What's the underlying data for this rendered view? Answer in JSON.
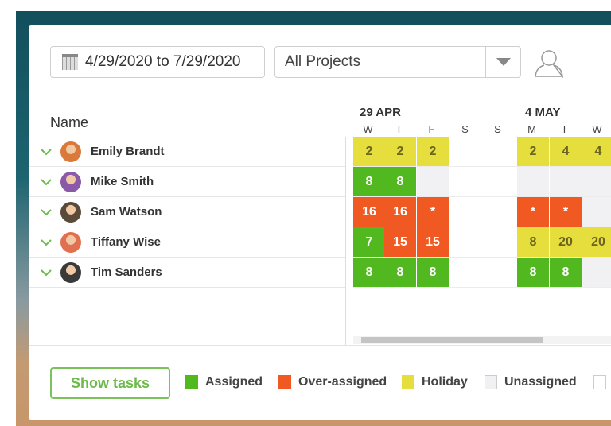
{
  "toolbar": {
    "date_range": "4/29/2020 to 7/29/2020",
    "project_filter": "All Projects"
  },
  "grid": {
    "name_header": "Name",
    "weeks": [
      {
        "label": "29 APR"
      },
      {
        "label": "4 MAY"
      }
    ],
    "days": [
      "W",
      "T",
      "F",
      "S",
      "S",
      "M",
      "T",
      "W"
    ],
    "people": [
      {
        "name": "Emily Brandt",
        "avatar_color": "#d9793a",
        "cells": [
          [
            "H",
            "2"
          ],
          [
            "H",
            "2"
          ],
          [
            "H",
            "2"
          ],
          [
            "W",
            ""
          ],
          [
            "W",
            ""
          ],
          [
            "H",
            "2"
          ],
          [
            "H",
            "4"
          ],
          [
            "H",
            "4"
          ]
        ]
      },
      {
        "name": "Mike Smith",
        "avatar_color": "#8a5aa8",
        "cells": [
          [
            "A",
            "8"
          ],
          [
            "A",
            "8"
          ],
          [
            "U",
            ""
          ],
          [
            "W",
            ""
          ],
          [
            "W",
            ""
          ],
          [
            "U",
            ""
          ],
          [
            "U",
            ""
          ],
          [
            "U",
            ""
          ]
        ]
      },
      {
        "name": "Sam Watson",
        "avatar_color": "#5a4a3a",
        "cells": [
          [
            "O",
            "16"
          ],
          [
            "O",
            "16"
          ],
          [
            "O",
            "*"
          ],
          [
            "W",
            ""
          ],
          [
            "W",
            ""
          ],
          [
            "O",
            "*"
          ],
          [
            "O",
            "*"
          ],
          [
            "U",
            ""
          ]
        ]
      },
      {
        "name": "Tiffany Wise",
        "avatar_color": "#e07050",
        "cells": [
          [
            "A",
            "7"
          ],
          [
            "O",
            "15"
          ],
          [
            "O",
            "15"
          ],
          [
            "W",
            ""
          ],
          [
            "W",
            ""
          ],
          [
            "H",
            "8"
          ],
          [
            "H",
            "20"
          ],
          [
            "H",
            "20"
          ]
        ]
      },
      {
        "name": "Tim Sanders",
        "avatar_color": "#3a3a3a",
        "cells": [
          [
            "A",
            "8"
          ],
          [
            "A",
            "8"
          ],
          [
            "A",
            "8"
          ],
          [
            "W",
            ""
          ],
          [
            "W",
            ""
          ],
          [
            "A",
            "8"
          ],
          [
            "A",
            "8"
          ],
          [
            "U",
            ""
          ]
        ]
      }
    ]
  },
  "footer": {
    "show_tasks": "Show tasks",
    "legend": [
      {
        "label": "Assigned",
        "color": "#52b81f"
      },
      {
        "label": "Over-assigned",
        "color": "#f05a22"
      },
      {
        "label": "Holiday",
        "color": "#e6de3c"
      },
      {
        "label": "Unassigned",
        "color": "#f1f1f3"
      },
      {
        "label": "",
        "color": "#ffffff"
      }
    ]
  }
}
